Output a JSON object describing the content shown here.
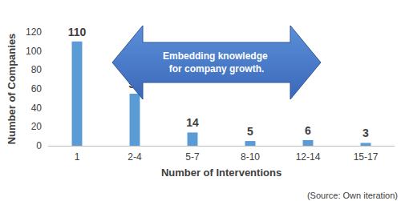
{
  "chart_data": {
    "type": "bar",
    "categories": [
      "1",
      "2-4",
      "5-7",
      "8-10",
      "12-14",
      "15-17"
    ],
    "values": [
      110,
      55,
      14,
      5,
      6,
      3
    ],
    "color": "#5b9bd5",
    "x_label": "Number of Interventions",
    "y_label": "Number of Companies",
    "ylim": [
      0,
      120
    ],
    "yticks": [
      0,
      20,
      40,
      60,
      80,
      100,
      120
    ],
    "grid": false,
    "data_labels": true,
    "annotation": "Embedding knowledge for company growth.",
    "source": "(Source: Own iteration)"
  }
}
